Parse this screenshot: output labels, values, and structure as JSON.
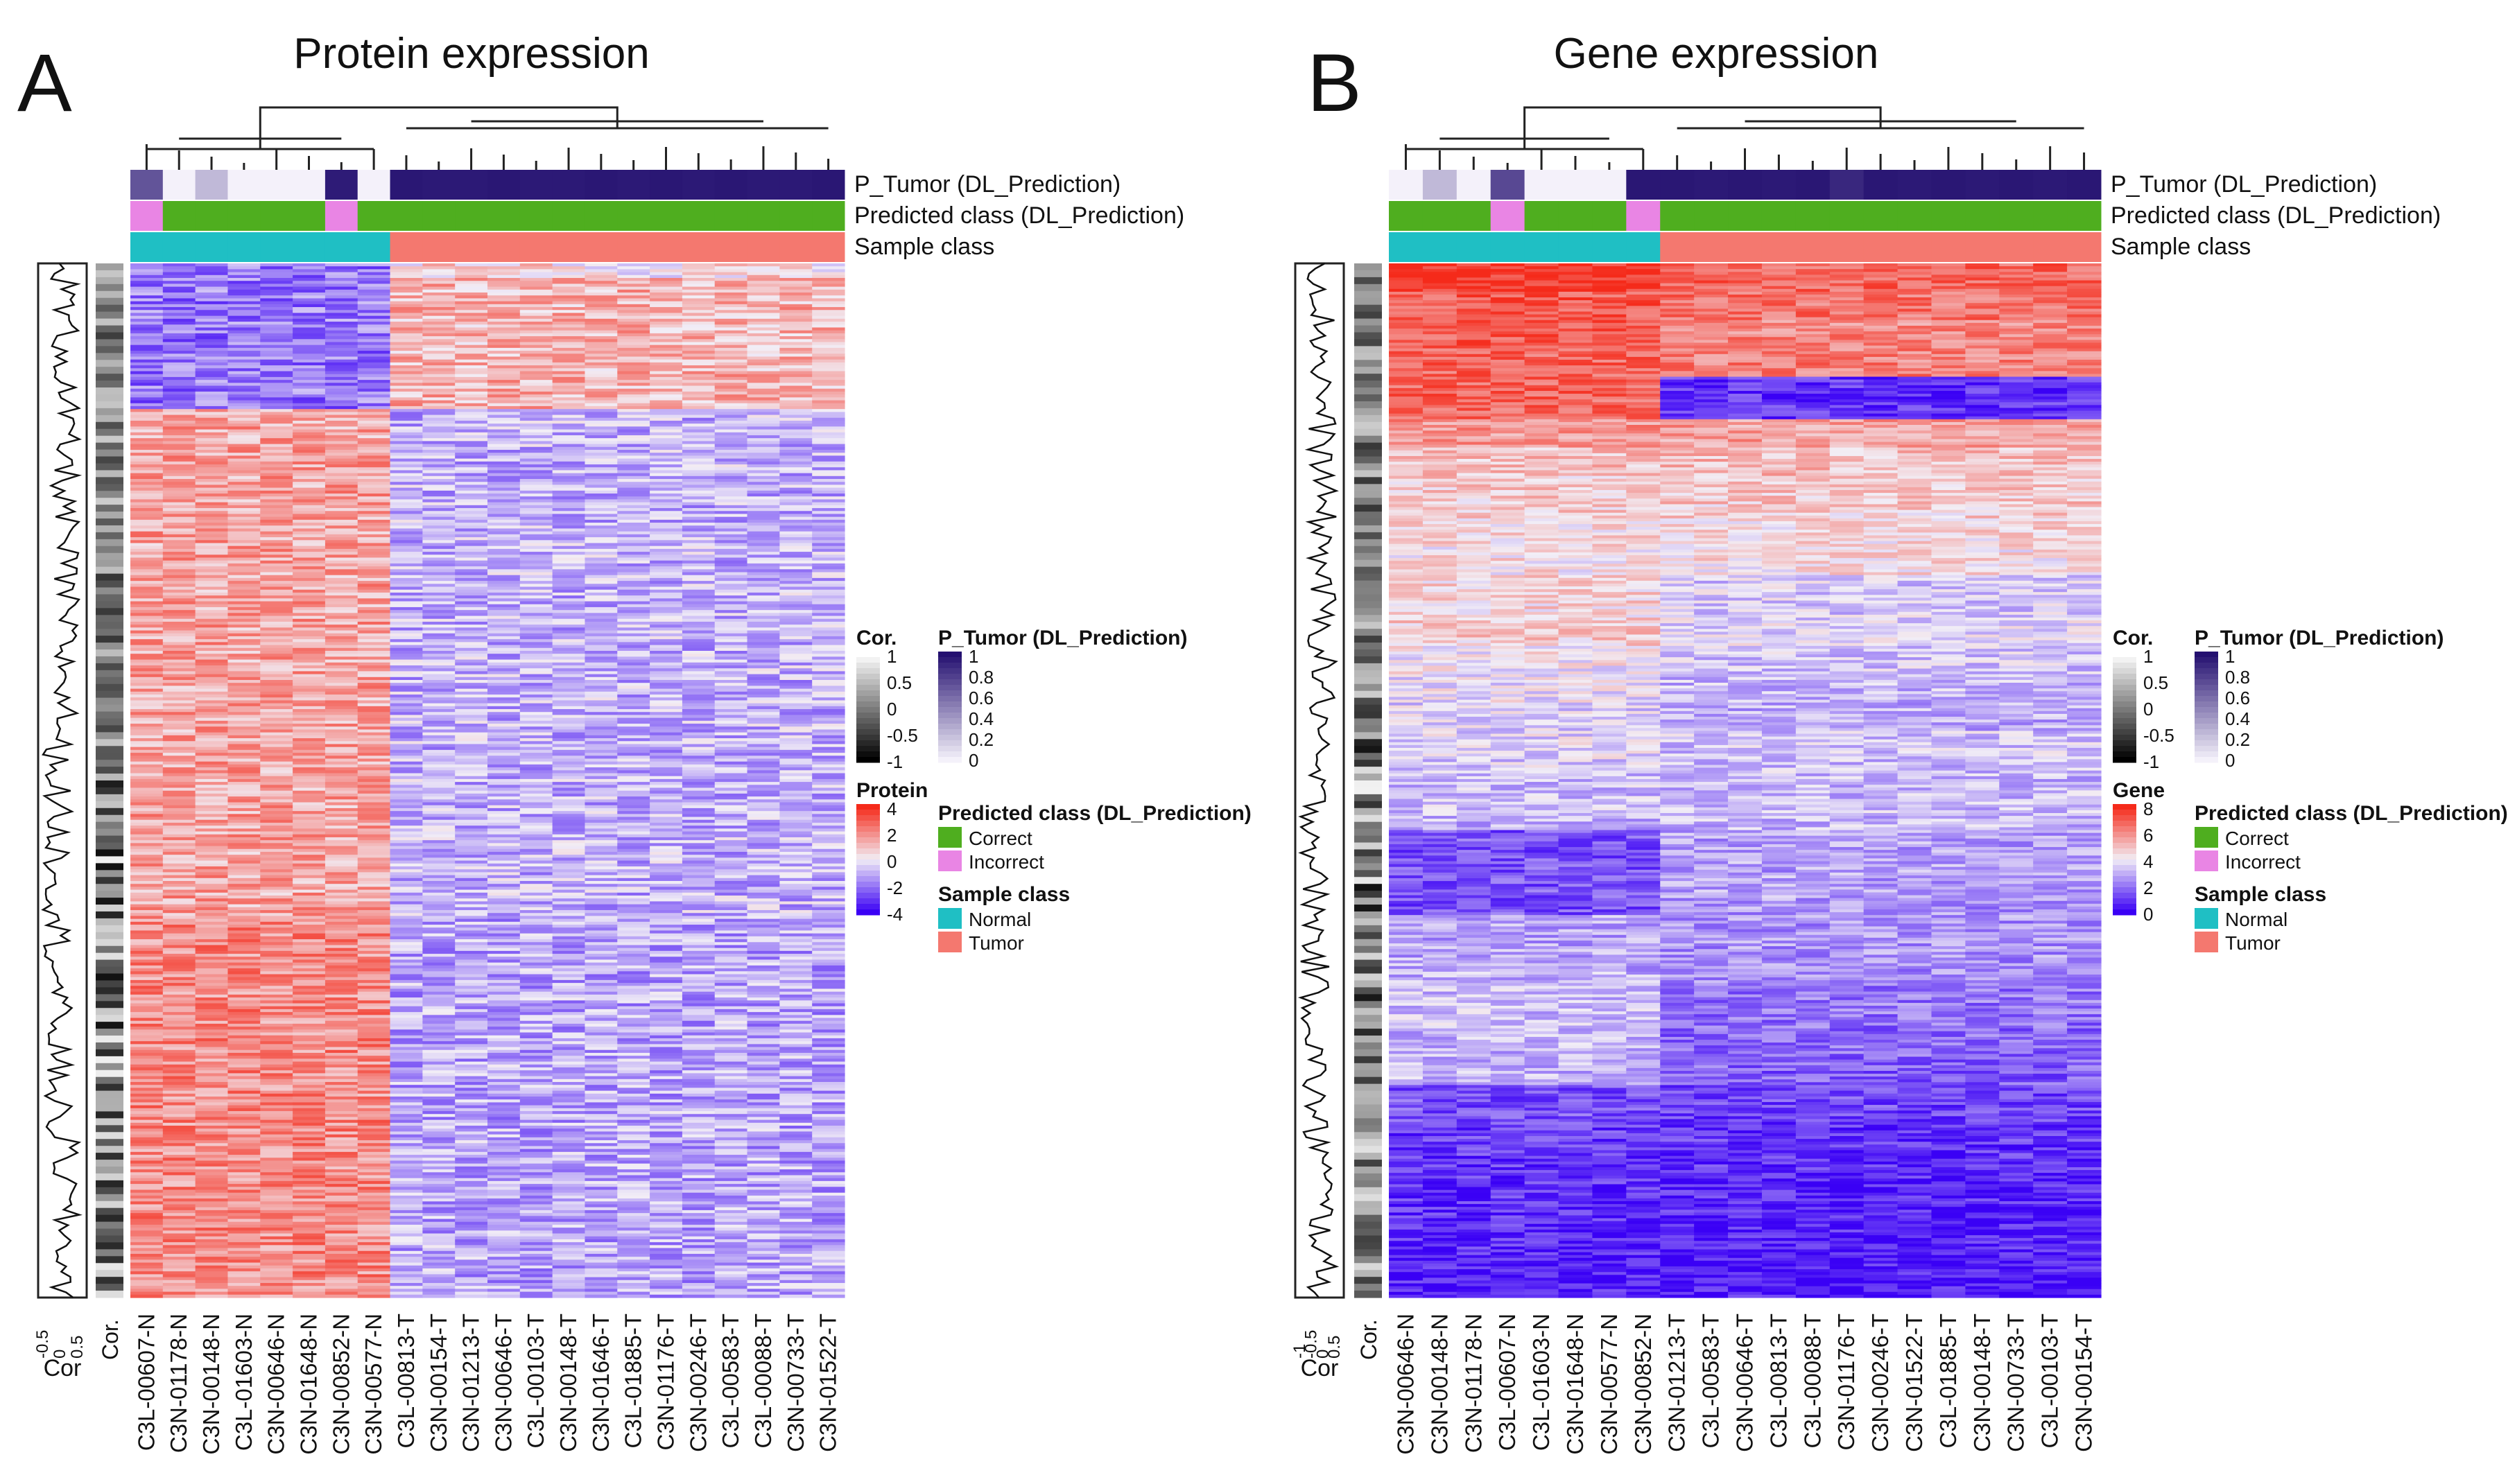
{
  "figure": {
    "colors": {
      "normal": "#1FBFC4",
      "tumor": "#F4786F",
      "correct": "#4FAE1F",
      "incorrect": "#E985E4",
      "p_tumor_high": "#241070",
      "p_tumor_low": "#F4F1FA",
      "heat_low": "#3A00F5",
      "heat_mid": "#F2EEF6",
      "heat_high": "#F52A1A"
    },
    "panels": [
      {
        "letter": "A",
        "title": "Protein expression",
        "track_labels": [
          "P_Tumor (DL_Prediction)",
          "Predicted class (DL_Prediction)",
          "Sample class"
        ],
        "samples": [
          "C3L-00607-N",
          "C3N-01178-N",
          "C3N-00148-N",
          "C3L-01603-N",
          "C3N-00646-N",
          "C3N-01648-N",
          "C3N-00852-N",
          "C3N-00577-N",
          "C3L-00813-T",
          "C3N-00154-T",
          "C3N-01213-T",
          "C3N-00646-T",
          "C3L-00103-T",
          "C3N-00148-T",
          "C3N-01646-T",
          "C3L-01885-T",
          "C3N-01176-T",
          "C3N-00246-T",
          "C3L-00583-T",
          "C3L-00088-T",
          "C3N-00733-T",
          "C3N-01522-T"
        ],
        "sample_class": [
          "Normal",
          "Normal",
          "Normal",
          "Normal",
          "Normal",
          "Normal",
          "Normal",
          "Normal",
          "Tumor",
          "Tumor",
          "Tumor",
          "Tumor",
          "Tumor",
          "Tumor",
          "Tumor",
          "Tumor",
          "Tumor",
          "Tumor",
          "Tumor",
          "Tumor",
          "Tumor",
          "Tumor"
        ],
        "predicted_class": [
          "Incorrect",
          "Correct",
          "Correct",
          "Correct",
          "Correct",
          "Correct",
          "Incorrect",
          "Correct",
          "Correct",
          "Correct",
          "Correct",
          "Correct",
          "Correct",
          "Correct",
          "Correct",
          "Correct",
          "Correct",
          "Correct",
          "Correct",
          "Correct",
          "Correct",
          "Correct"
        ],
        "p_tumor": [
          0.7,
          0.0,
          0.25,
          0.0,
          0.0,
          0.0,
          0.95,
          0.0,
          0.97,
          0.96,
          0.96,
          0.97,
          0.96,
          0.96,
          0.97,
          0.96,
          0.97,
          0.96,
          0.97,
          0.96,
          0.96,
          0.97
        ],
        "heatmap_summary": {
          "Normal": [
            -2.0,
            -2.0,
            -2.0,
            -2.0,
            -2.0,
            -2.0,
            -2.0,
            -2.0,
            -2.0,
            -2.0,
            1.5,
            1.5,
            1.5,
            1.5,
            1.5,
            1.5,
            1.5,
            1.5,
            1.5,
            1.5,
            1.5,
            1.5,
            1.5,
            1.5,
            1.5,
            1.5,
            1.5,
            1.5,
            1.5,
            1.5,
            1.5,
            1.5,
            1.5,
            1.5,
            1.5,
            1.5,
            1.5,
            1.5,
            1.5,
            1.5,
            1.5,
            1.5,
            1.5,
            1.5,
            1.5,
            2.0,
            2.0,
            2.0,
            2.0,
            2.0,
            2.0,
            2.0,
            2.0,
            2.0,
            2.0,
            2.0,
            2.0,
            2.0,
            2.0,
            2.0,
            2.0,
            2.0,
            2.0,
            2.0,
            2.0,
            2.0,
            2.0,
            2.0,
            2.0,
            2.0,
            2.0
          ],
          "Tumor": [
            0.4,
            1.2,
            1.2,
            1.2,
            1.2,
            1.2,
            1.2,
            1.2,
            1.2,
            1.2,
            -1.0,
            -1.0,
            -1.0,
            -1.0,
            -1.0,
            -1.0,
            -1.0,
            -1.0,
            -1.0,
            -1.0,
            -1.0,
            -1.0,
            -1.0,
            -1.0,
            -1.0,
            -1.0,
            -1.0,
            -1.0,
            -1.0,
            -1.0,
            -1.0,
            -1.0,
            -1.0,
            -1.0,
            -1.0,
            -1.0,
            -1.0,
            -1.0,
            -1.0,
            -1.0,
            -1.0,
            -1.0,
            -1.0,
            -1.0,
            -1.0,
            -1.2,
            -1.2,
            -1.2,
            -1.2,
            -1.2,
            -1.2,
            -1.2,
            -1.2,
            -1.2,
            -1.2,
            -1.2,
            -1.2,
            -1.2,
            -1.2,
            -1.2,
            -1.2,
            -1.2,
            -1.2,
            -1.2,
            -1.2,
            -1.2,
            -1.2,
            -1.2,
            -1.2,
            -1.2,
            -1.2
          ]
        },
        "axis_ticks": [
          "-0.5",
          "0",
          "0.5"
        ],
        "cor_axis_label": "Cor",
        "cor_column_label": "Cor.",
        "legend": {
          "cor_title": "Cor.",
          "cor_ticks": [
            "1",
            "0.5",
            "0",
            "-0.5",
            "-1"
          ],
          "expr_title": "Protein",
          "expr_ticks": [
            "4",
            "2",
            "0",
            "-2",
            "-4"
          ],
          "p_title": "P_Tumor (DL_Prediction)",
          "p_ticks": [
            "1",
            "0.8",
            "0.6",
            "0.4",
            "0.2",
            "0"
          ],
          "pred_title": "Predicted class (DL_Prediction)",
          "pred_items": [
            "Correct",
            "Incorrect"
          ],
          "sample_title": "Sample class",
          "sample_items": [
            "Normal",
            "Tumor"
          ]
        }
      },
      {
        "letter": "B",
        "title": "Gene expression",
        "track_labels": [
          "P_Tumor (DL_Prediction)",
          "Predicted class (DL_Prediction)",
          "Sample class"
        ],
        "samples": [
          "C3N-00646-N",
          "C3N-00148-N",
          "C3N-01178-N",
          "C3L-00607-N",
          "C3L-01603-N",
          "C3N-01648-N",
          "C3N-00577-N",
          "C3N-00852-N",
          "C3N-01213-T",
          "C3L-00583-T",
          "C3N-00646-T",
          "C3L-00813-T",
          "C3L-00088-T",
          "C3N-01176-T",
          "C3N-00246-T",
          "C3N-01522-T",
          "C3L-01885-T",
          "C3N-00148-T",
          "C3N-00733-T",
          "C3L-00103-T",
          "C3N-00154-T"
        ],
        "sample_class": [
          "Normal",
          "Normal",
          "Normal",
          "Normal",
          "Normal",
          "Normal",
          "Normal",
          "Normal",
          "Tumor",
          "Tumor",
          "Tumor",
          "Tumor",
          "Tumor",
          "Tumor",
          "Tumor",
          "Tumor",
          "Tumor",
          "Tumor",
          "Tumor",
          "Tumor",
          "Tumor"
        ],
        "predicted_class": [
          "Correct",
          "Correct",
          "Correct",
          "Incorrect",
          "Correct",
          "Correct",
          "Correct",
          "Incorrect",
          "Correct",
          "Correct",
          "Correct",
          "Correct",
          "Correct",
          "Correct",
          "Correct",
          "Correct",
          "Correct",
          "Correct",
          "Correct",
          "Correct",
          "Correct"
        ],
        "p_tumor": [
          0.0,
          0.25,
          0.0,
          0.75,
          0.0,
          0.0,
          0.0,
          0.97,
          0.97,
          0.96,
          0.97,
          0.96,
          0.97,
          0.9,
          0.97,
          0.96,
          0.97,
          0.96,
          0.97,
          0.96,
          0.97
        ],
        "heatmap_summary": {
          "Normal": [
            7.8,
            7.8,
            7.0,
            7.0,
            7.0,
            7.0,
            6.8,
            6.8,
            6.8,
            6.8,
            6.8,
            5.8,
            5.8,
            5.0,
            5.0,
            4.7,
            4.7,
            4.7,
            4.5,
            4.5,
            4.3,
            4.3,
            4.5,
            4.5,
            4.5,
            4.7,
            4.7,
            4.0,
            4.0,
            3.8,
            3.8,
            3.5,
            3.5,
            3.6,
            3.6,
            3.4,
            3.2,
            3.2,
            3.2,
            3.0,
            1.4,
            1.4,
            1.4,
            1.4,
            1.4,
            1.4,
            2.8,
            2.8,
            2.8,
            2.8,
            3.0,
            3.2,
            3.2,
            3.2,
            3.0,
            3.0,
            3.0,
            3.0,
            1.4,
            1.4,
            1.4,
            1.0,
            1.0,
            0.8,
            0.8,
            0.8,
            0.7,
            0.7,
            0.7,
            0.7,
            0.5,
            0.5,
            0.5
          ],
          "Tumor": [
            6.8,
            6.8,
            6.5,
            6.5,
            6.0,
            6.2,
            6.2,
            6.3,
            0.8,
            0.8,
            0.8,
            5.6,
            5.6,
            5.0,
            5.0,
            4.8,
            4.8,
            4.6,
            4.4,
            4.4,
            4.3,
            4.3,
            3.4,
            3.4,
            3.4,
            3.6,
            3.6,
            3.3,
            3.3,
            3.1,
            3.1,
            2.9,
            2.9,
            3.3,
            3.3,
            3.2,
            3.1,
            3.1,
            3.2,
            3.1,
            2.7,
            2.7,
            2.7,
            2.7,
            2.7,
            2.5,
            2.5,
            2.5,
            2.5,
            2.4,
            2.4,
            2.0,
            2.0,
            1.9,
            1.8,
            1.8,
            1.7,
            1.6,
            1.2,
            1.2,
            1.0,
            0.9,
            0.8,
            0.8,
            0.6,
            0.6,
            0.6,
            0.5,
            0.5,
            0.5,
            0.4,
            0.4,
            0.4
          ]
        },
        "axis_ticks": [
          "-1",
          "-0.5",
          "0",
          "0.5"
        ],
        "cor_axis_label": "Cor",
        "cor_column_label": "Cor.",
        "legend": {
          "cor_title": "Cor.",
          "cor_ticks": [
            "1",
            "0.5",
            "0",
            "-0.5",
            "-1"
          ],
          "expr_title": "Gene",
          "expr_ticks": [
            "8",
            "6",
            "4",
            "2",
            "0"
          ],
          "p_title": "P_Tumor (DL_Prediction)",
          "p_ticks": [
            "1",
            "0.8",
            "0.6",
            "0.4",
            "0.2",
            "0"
          ],
          "pred_title": "Predicted class (DL_Prediction)",
          "pred_items": [
            "Correct",
            "Incorrect"
          ],
          "sample_title": "Sample class",
          "sample_items": [
            "Normal",
            "Tumor"
          ]
        }
      }
    ]
  },
  "chart_data": [
    {
      "type": "heatmap",
      "title": "Protein expression",
      "value_label": "Protein",
      "value_range": [
        -4,
        4
      ],
      "columns": [
        "C3L-00607-N",
        "C3N-01178-N",
        "C3N-00148-N",
        "C3L-01603-N",
        "C3N-00646-N",
        "C3N-01648-N",
        "C3N-00852-N",
        "C3N-00577-N",
        "C3L-00813-T",
        "C3N-00154-T",
        "C3N-01213-T",
        "C3N-00646-T",
        "C3L-00103-T",
        "C3N-00148-T",
        "C3N-01646-T",
        "C3L-01885-T",
        "C3N-01176-T",
        "C3N-00246-T",
        "C3L-00583-T",
        "C3L-00088-T",
        "C3N-00733-T",
        "C3N-01522-T"
      ],
      "column_annotations": [
        "P_Tumor (DL_Prediction)",
        "Predicted class (DL_Prediction)",
        "Sample class"
      ],
      "row_annotation": "Cor.",
      "note": "Approximate mean expression per row band given in figure.panels[0].heatmap_summary"
    },
    {
      "type": "heatmap",
      "title": "Gene expression",
      "value_label": "Gene",
      "value_range": [
        0,
        8
      ],
      "columns": [
        "C3N-00646-N",
        "C3N-00148-N",
        "C3N-01178-N",
        "C3L-00607-N",
        "C3L-01603-N",
        "C3N-01648-N",
        "C3N-00577-N",
        "C3N-00852-N",
        "C3N-01213-T",
        "C3L-00583-T",
        "C3N-00646-T",
        "C3L-00813-T",
        "C3L-00088-T",
        "C3N-01176-T",
        "C3N-00246-T",
        "C3N-01522-T",
        "C3L-01885-T",
        "C3N-00148-T",
        "C3N-00733-T",
        "C3L-00103-T",
        "C3N-00154-T"
      ],
      "column_annotations": [
        "P_Tumor (DL_Prediction)",
        "Predicted class (DL_Prediction)",
        "Sample class"
      ],
      "row_annotation": "Cor.",
      "note": "Approximate mean expression per row band given in figure.panels[1].heatmap_summary"
    }
  ]
}
